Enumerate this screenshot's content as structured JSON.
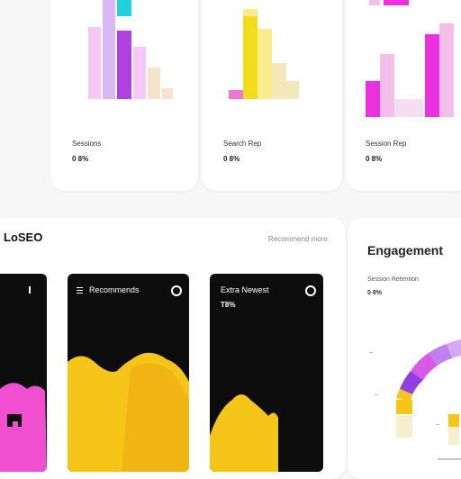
{
  "stats": [
    {
      "label": "Sessions",
      "value": "0 8%",
      "colors": {
        "main": "#b040e0",
        "accent": "#22d0e0",
        "light": "#f5c8f5",
        "fade": "#f6e3c9"
      },
      "bars": [
        0.55,
        1.0,
        0.8,
        0.65,
        0.45,
        0.22
      ],
      "highlight": 1
    },
    {
      "label": "Search Rep",
      "value": "0 8%",
      "colors": {
        "main": "#f2dc1c",
        "light": "#faeb8c",
        "fade": "#f4e8bb",
        "pink": "#ef77d3"
      },
      "bars": [
        0.07,
        0.9,
        0.74,
        0.46,
        0.3
      ],
      "highlight": 1
    },
    {
      "label": "Session Rep",
      "value": "0 8%",
      "colors": {
        "main": "#ec30e0",
        "light": "#f3bfe9",
        "fade": "#f6def2"
      },
      "bars": [
        0.32,
        0.56,
        0.15,
        0.15,
        0.74,
        0.9
      ],
      "highlight": 0
    }
  ],
  "loseo": {
    "title": "LoSEO",
    "link": "Recommend more",
    "tiles": [
      {
        "title": "",
        "sub": "",
        "name": "tile-1"
      },
      {
        "title": "Recommends",
        "sub": "",
        "name": "tile-2"
      },
      {
        "title": "Extra Newest",
        "sub": "T8%",
        "name": "tile-3"
      }
    ]
  },
  "engagement": {
    "title": "Engagement",
    "label": "Session Retention",
    "value": "0 8%",
    "axis_left": "--",
    "axis_left2": "--",
    "axis_bottom": "--"
  }
}
